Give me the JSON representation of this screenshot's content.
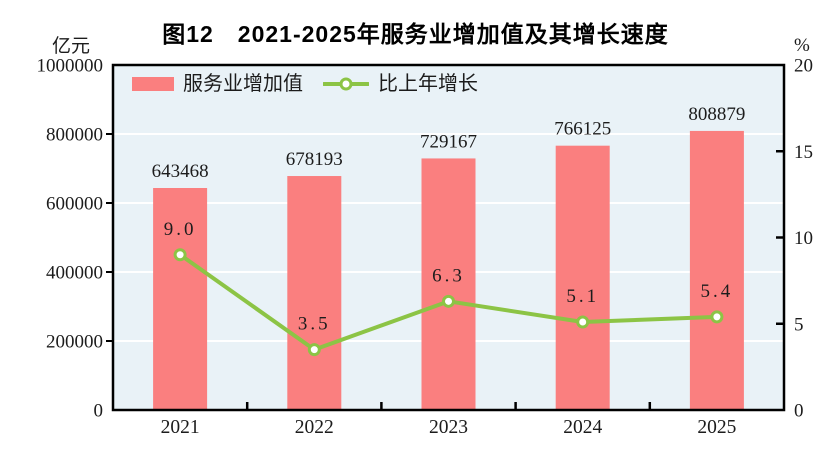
{
  "title": "图12　2021-2025年服务业增加值及其增长速度",
  "axes": {
    "left_unit": "亿元",
    "right_unit": "%"
  },
  "legend": {
    "bar_label": "服务业增加值",
    "line_label": "比上年增长"
  },
  "colors": {
    "bar": "#FA7F7F",
    "line": "#8CC445",
    "marker_fill": "#FFFFFF",
    "plot_bg": "#E9F2F7",
    "grid": "#FFFFFF",
    "axis": "#000000",
    "text": "#1C1C1C",
    "background": "#FFFFFF"
  },
  "chart_data": {
    "type": "bar",
    "combo": "bar+line",
    "title": "图12　2021-2025年服务业增加值及其增长速度",
    "categories": [
      "2021",
      "2022",
      "2023",
      "2024",
      "2025"
    ],
    "series": [
      {
        "name": "服务业增加值",
        "type": "bar",
        "axis": "left",
        "values": [
          643468,
          678193,
          729167,
          766125,
          808879
        ],
        "labels": [
          "643468",
          "678193",
          "729167",
          "766125",
          "808879"
        ]
      },
      {
        "name": "比上年增长",
        "type": "line",
        "axis": "right",
        "values": [
          9.0,
          3.5,
          6.3,
          5.1,
          5.4
        ],
        "labels": [
          "9.0",
          "3.5",
          "6.3",
          "5.1",
          "5.4"
        ]
      }
    ],
    "left_axis": {
      "unit": "亿元",
      "min": 0,
      "max": 1000000,
      "tick_interval": 200000,
      "tick_labels": [
        "0",
        "200000",
        "400000",
        "600000",
        "800000",
        "1000000"
      ]
    },
    "right_axis": {
      "unit": "%",
      "min": 0,
      "max": 20,
      "tick_interval": 5,
      "tick_labels": [
        "0",
        "5",
        "10",
        "15",
        "20"
      ]
    },
    "grid": "horizontal-white",
    "legend_position": "top-left-inside"
  }
}
